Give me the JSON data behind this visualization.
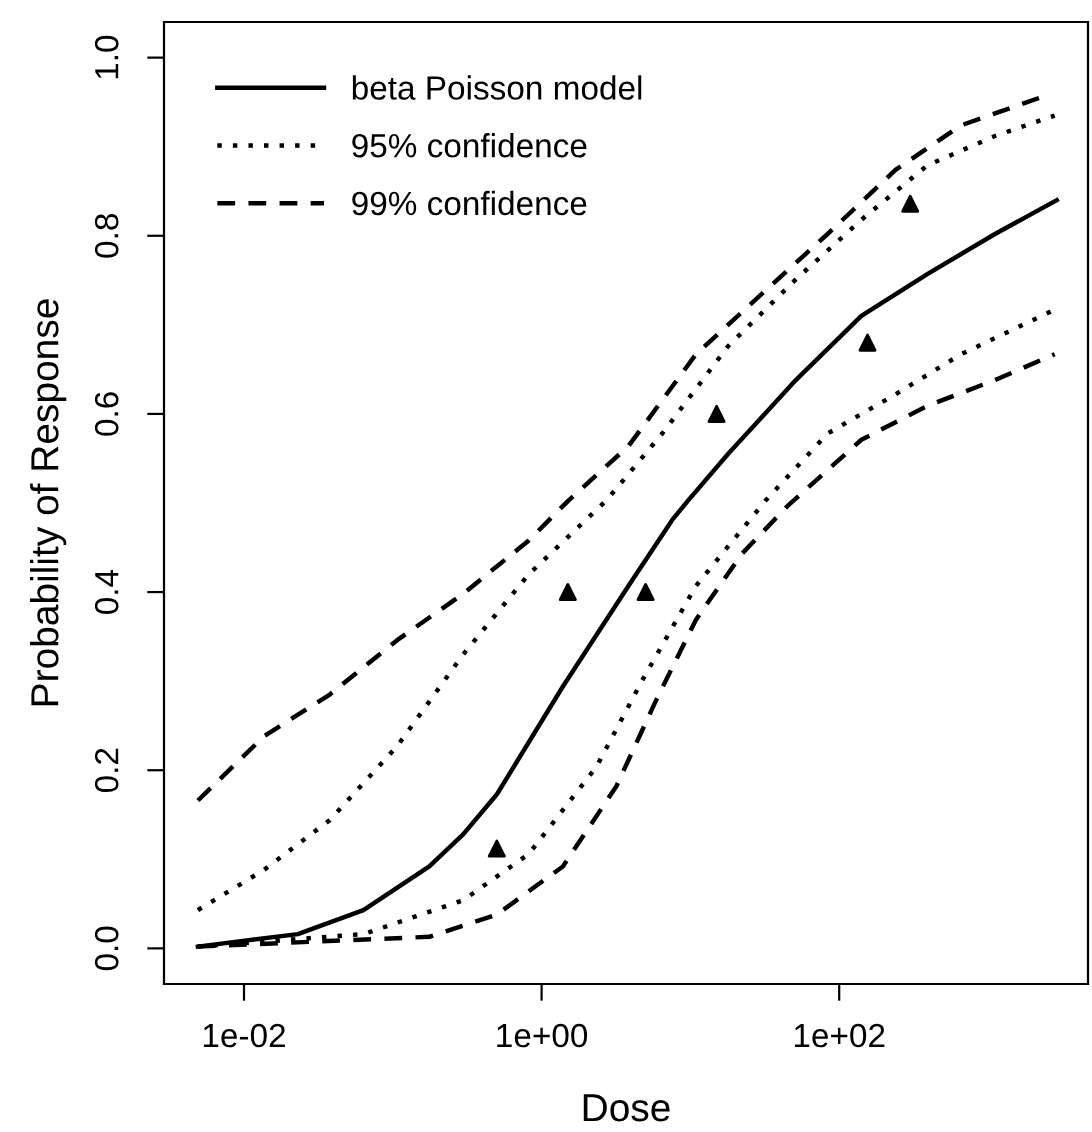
{
  "chart_data": {
    "type": "line",
    "xlabel": "Dose",
    "ylabel": "Probability of Response",
    "log": "x",
    "series": [
      {
        "name": "beta Poisson model",
        "color": "#000000",
        "line_style": "solid",
        "x": [
          0.0049,
          0.023,
          0.0635,
          0.176,
          0.297,
          0.501,
          1.39,
          3.84,
          7.55,
          9.67,
          17.9,
          51.1,
          141,
          391,
          1114,
          2897
        ],
        "values": [
          0.002,
          0.016,
          0.043,
          0.092,
          0.128,
          0.173,
          0.294,
          0.407,
          0.481,
          0.503,
          0.555,
          0.638,
          0.71,
          0.757,
          0.802,
          0.84
        ]
      },
      {
        "name": "95% confidence",
        "color": "#000000",
        "line_style": "dotted",
        "x": [
          0.0049,
          0.0136,
          0.0377,
          0.107,
          0.297,
          0.82,
          2.73,
          6.47,
          17.9,
          51.1,
          141,
          391,
          1114,
          2806
        ],
        "values": [
          0.043,
          0.088,
          0.144,
          0.227,
          0.33,
          0.42,
          0.503,
          0.578,
          0.676,
          0.751,
          0.818,
          0.879,
          0.912,
          0.935
        ]
      },
      {
        "color": "#000000",
        "line_style": "dotted",
        "x": [
          0.0049,
          0.0635,
          0.297,
          0.82,
          2.34,
          4.75,
          10.9,
          32.1,
          83.6,
          239,
          659,
          2806
        ],
        "values": [
          0.002,
          0.016,
          0.054,
          0.106,
          0.204,
          0.301,
          0.407,
          0.503,
          0.578,
          0.622,
          0.667,
          0.717
        ]
      },
      {
        "name": "99% confidence",
        "color": "#000000",
        "line_style": "dashed",
        "x": [
          0.0049,
          0.0136,
          0.0377,
          0.107,
          0.297,
          0.82,
          1.52,
          3.84,
          10.9,
          30.3,
          83.6,
          239,
          659,
          2410
        ],
        "values": [
          0.166,
          0.238,
          0.285,
          0.346,
          0.398,
          0.458,
          0.503,
          0.564,
          0.667,
          0.735,
          0.802,
          0.874,
          0.924,
          0.957
        ]
      },
      {
        "color": "#000000",
        "line_style": "dashed",
        "x": [
          0.0049,
          0.176,
          0.501,
          1.39,
          3.18,
          5.9,
          10.9,
          22.2,
          45.2,
          141,
          391,
          1114,
          2806
        ],
        "values": [
          0.002,
          0.013,
          0.038,
          0.092,
          0.182,
          0.279,
          0.369,
          0.443,
          0.497,
          0.571,
          0.609,
          0.638,
          0.667
        ]
      },
      {
        "type": "scatter",
        "marker": "triangle",
        "color": "#000000",
        "x": [
          0.5,
          1.5,
          5,
          15,
          155,
          300
        ],
        "values": [
          0.112,
          0.4,
          0.4,
          0.6,
          0.68,
          0.836
        ]
      }
    ],
    "xlim": [
      0.0029,
      4700
    ],
    "ylim": [
      -0.04,
      1.04
    ],
    "xticks": [
      {
        "value": 0.01,
        "label": "1e-02"
      },
      {
        "value": 1,
        "label": "1e+00"
      },
      {
        "value": 100,
        "label": "1e+02"
      }
    ],
    "yticks": [
      {
        "value": 0,
        "label": "0.0"
      },
      {
        "value": 0.2,
        "label": "0.2"
      },
      {
        "value": 0.4,
        "label": "0.4"
      },
      {
        "value": 0.6,
        "label": "0.6"
      },
      {
        "value": 0.8,
        "label": "0.8"
      },
      {
        "value": 1,
        "label": "1.0"
      }
    ],
    "grid": false,
    "legend": "top left"
  }
}
